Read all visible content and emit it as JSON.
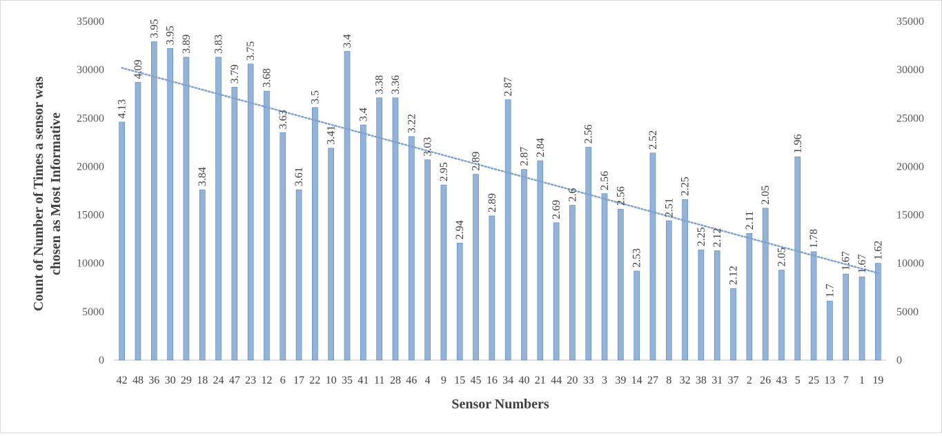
{
  "colors": {
    "bar": "#95b3d7",
    "bar_edge": "#4f81bd",
    "trend": "#7da1cf",
    "grid": "#d9d9d9",
    "axis": "#bfbfbf"
  },
  "chart_data": {
    "type": "bar",
    "title": "",
    "xlabel": "Sensor Numbers",
    "ylabel": "Count of Number of Times a sensor was chosen as Most Informative",
    "ylim": [
      0,
      35000
    ],
    "yticks": [
      0,
      5000,
      10000,
      15000,
      20000,
      25000,
      30000,
      35000
    ],
    "secondary_ylim": [
      0,
      35000
    ],
    "grid": false,
    "legend": "none",
    "trendline": "linear, dotted",
    "categories": [
      "42",
      "48",
      "36",
      "30",
      "29",
      "18",
      "24",
      "47",
      "23",
      "12",
      "6",
      "17",
      "22",
      "10",
      "35",
      "41",
      "11",
      "28",
      "46",
      "4",
      "9",
      "15",
      "45",
      "16",
      "34",
      "40",
      "21",
      "44",
      "20",
      "33",
      "3",
      "39",
      "14",
      "27",
      "8",
      "32",
      "38",
      "31",
      "37",
      "2",
      "26",
      "43",
      "5",
      "25",
      "13",
      "7",
      "1",
      "19"
    ],
    "values": [
      24600,
      28700,
      32900,
      32200,
      31300,
      17600,
      31300,
      28200,
      30600,
      27800,
      23500,
      17600,
      26100,
      21900,
      31900,
      24300,
      27100,
      27100,
      23100,
      20700,
      18100,
      12100,
      19200,
      14900,
      26900,
      19700,
      20600,
      14200,
      16000,
      22000,
      17200,
      15600,
      9200,
      21400,
      14400,
      16600,
      11400,
      11300,
      7400,
      13100,
      15700,
      9300,
      21000,
      11200,
      6100,
      8900,
      8600,
      10000
    ],
    "data_labels": [
      "4.13",
      "4.09",
      "3.95",
      "3.95",
      "3.89",
      "3.84",
      "3.83",
      "3.79",
      "3.75",
      "3.68",
      "3.63",
      "3.61",
      "3.5",
      "3.41",
      "3.4",
      "3.4",
      "3.38",
      "3.36",
      "3.22",
      "3.03",
      "2.95",
      "2.94",
      "2.89",
      "2.89",
      "2.87",
      "2.87",
      "2.84",
      "2.69",
      "2.6",
      "2.56",
      "2.56",
      "2.56",
      "2.53",
      "2.52",
      "2.51",
      "2.25",
      "2.25",
      "2.12",
      "2.12",
      "2.11",
      "2.05",
      "2.05",
      "1.96",
      "1.78",
      "1.7",
      "1.67",
      "1.67",
      "1.62"
    ]
  }
}
